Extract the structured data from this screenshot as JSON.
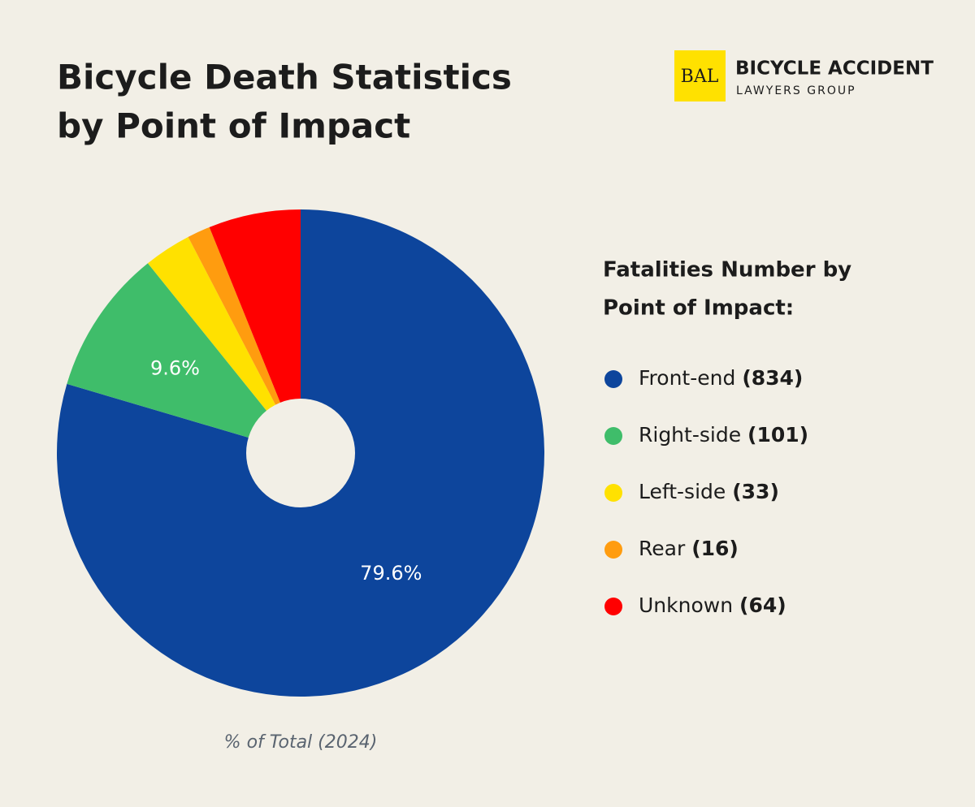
{
  "chart_data": {
    "type": "pie",
    "title": [
      "Bicycle Death Statistics",
      "by Point of Impact"
    ],
    "logo": {
      "mark": "BAL",
      "name": "BICYCLE ACCIDENT",
      "sub": "LAWYERS GROUP"
    },
    "legend_title": [
      "Fatalities Number by",
      "Point of Impact:"
    ],
    "caption": "% of Total (2024)",
    "categories": [
      "Front-end",
      "Right-side",
      "Left-side",
      "Rear",
      "Unknown"
    ],
    "values": [
      834,
      101,
      33,
      16,
      64
    ],
    "count_labels": [
      "(834)",
      "(101)",
      "(33)",
      "(16)",
      "(64)"
    ],
    "value_labels": [
      "79.6%",
      "9.6%",
      null,
      null,
      null
    ],
    "colors": [
      "#0d459c",
      "#3fbd6a",
      "#ffe100",
      "#ff9c0f",
      "#ff0000"
    ]
  }
}
